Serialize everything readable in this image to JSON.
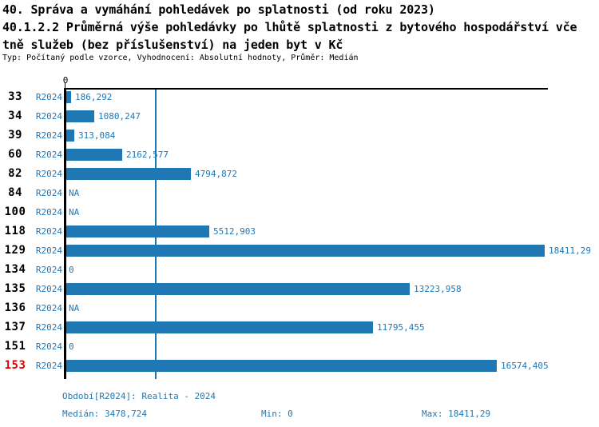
{
  "header": {
    "line1": "40. Správa a vymáhání pohledávek po splatnosti (od roku 2023)",
    "line2": "40.1.2.2 Průměrná výše pohledávky po lhůtě splatnosti z bytového hospodářství vče",
    "line3": "tně služeb (bez příslušenství) na jeden byt v Kč",
    "meta": "Typ: Počítaný podle vzorce, Vyhodnocení: Absolutní hodnoty, Průměr: Medián"
  },
  "chart_data": {
    "type": "bar",
    "orientation": "horizontal",
    "series_label": "R2024",
    "categories": [
      "33",
      "34",
      "39",
      "60",
      "82",
      "84",
      "100",
      "118",
      "129",
      "134",
      "135",
      "136",
      "137",
      "151",
      "153"
    ],
    "values": [
      186.292,
      1080.247,
      313.084,
      2162.577,
      4794.872,
      null,
      null,
      5512.903,
      18411.29,
      0,
      13223.958,
      null,
      11795.455,
      0,
      16574.405
    ],
    "value_labels": [
      "186,292",
      "1080,247",
      "313,084",
      "2162,577",
      "4794,872",
      "NA",
      "NA",
      "5512,903",
      "18411,29",
      "0",
      "13223,958",
      "NA",
      "11795,455",
      "0",
      "16574,405"
    ],
    "highlighted_category": "153",
    "axis_zero_label": "0",
    "xlim": [
      0,
      18411.29
    ],
    "median_value": 3478.724,
    "grid": false,
    "legend": false,
    "bar_color": "#1F77B4",
    "highlight_color": "#DD0000"
  },
  "footer": {
    "period": "Období[R2024]: Realita - 2024",
    "median": "Medián: 3478,724",
    "min": "Min: 0",
    "max": "Max: 18411,29"
  }
}
